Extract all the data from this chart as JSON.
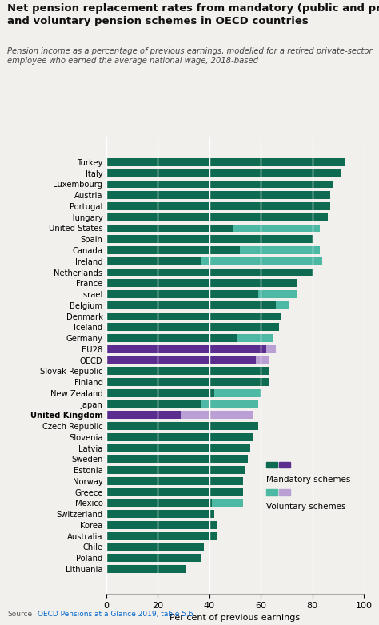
{
  "title": "Net pension replacement rates from mandatory (public and private)\nand voluntary pension schemes in OECD countries",
  "subtitle": "Pension income as a percentage of previous earnings, modelled for a retired private-sector\nemployee who earned the average national wage, 2018-based",
  "xlabel": "Per cent of previous earnings",
  "source_label": "Source",
  "source_link": "OECD Pensions at a Glance 2019, table 5.6",
  "background_color": "#f2f0ed",
  "countries": [
    "Turkey",
    "Italy",
    "Luxembourg",
    "Austria",
    "Portugal",
    "Hungary",
    "United States",
    "Spain",
    "Canada",
    "Ireland",
    "Netherlands",
    "France",
    "Israel",
    "Belgium",
    "Denmark",
    "Iceland",
    "Germany",
    "EU28",
    "OECD",
    "Slovak Republic",
    "Finland",
    "New Zealand",
    "Japan",
    "United Kingdom",
    "Czech Republic",
    "Slovenia",
    "Latvia",
    "Sweden",
    "Estonia",
    "Norway",
    "Greece",
    "Mexico",
    "Switzerland",
    "Korea",
    "Australia",
    "Chile",
    "Poland",
    "Lithuania"
  ],
  "mandatory_val": [
    93,
    91,
    88,
    87,
    87,
    86,
    49,
    80,
    52,
    37,
    80,
    74,
    59,
    66,
    68,
    67,
    51,
    62,
    58,
    63,
    63,
    42,
    37,
    29,
    59,
    57,
    56,
    55,
    54,
    53,
    53,
    41,
    42,
    43,
    43,
    38,
    37,
    31
  ],
  "voluntary_val": [
    0,
    0,
    0,
    0,
    0,
    0,
    34,
    0,
    31,
    47,
    0,
    0,
    15,
    5,
    0,
    0,
    14,
    4,
    5,
    0,
    0,
    18,
    22,
    28,
    0,
    0,
    0,
    0,
    0,
    0,
    0,
    12,
    0,
    0,
    0,
    0,
    0,
    0
  ],
  "is_purple": [
    false,
    false,
    false,
    false,
    false,
    false,
    false,
    false,
    false,
    false,
    false,
    false,
    false,
    false,
    false,
    false,
    false,
    true,
    true,
    false,
    false,
    false,
    false,
    true,
    false,
    false,
    false,
    false,
    false,
    false,
    false,
    false,
    false,
    false,
    false,
    false,
    false,
    false
  ],
  "color_mandatory_green": "#0e6b52",
  "color_mandatory_purple": "#5b2d8e",
  "color_voluntary_teal": "#4db8a4",
  "color_voluntary_lavender": "#b99fd4",
  "xlim": [
    0,
    100
  ],
  "bar_height": 0.72
}
